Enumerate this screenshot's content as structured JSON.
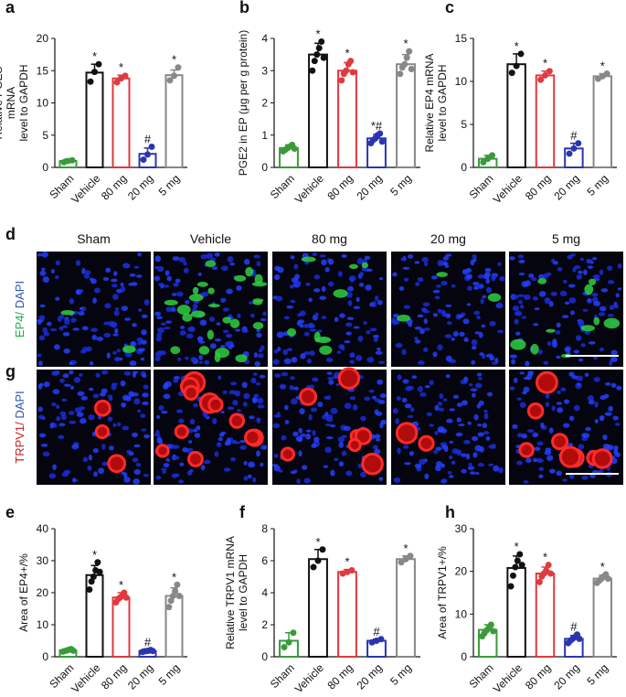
{
  "panel_labels": [
    "a",
    "b",
    "c",
    "d",
    "g",
    "e",
    "f",
    "h"
  ],
  "micrographs": {
    "columns": [
      "Sham",
      "Vehicle",
      "80 mg",
      "20 mg",
      "5 mg"
    ],
    "rows": [
      {
        "parts": [
          {
            "text": "EP4/",
            "color": "#22b04a"
          },
          {
            "text": " DAPI",
            "color": "#2a55b0"
          }
        ]
      },
      {
        "parts": [
          {
            "text": "TRPV1/",
            "color": "#c81e1e"
          },
          {
            "text": " DAPI",
            "color": "#2a55b0"
          }
        ]
      }
    ]
  },
  "chart_data": [
    {
      "type": "bar",
      "ylabel": [
        "Relative PGES",
        "mRNA",
        "level to GAPDH"
      ],
      "categories": [
        "Sham",
        "Vehicle",
        "80 mg",
        "20 mg",
        "5 mg"
      ],
      "colors": [
        "#3a9a3a",
        "#111111",
        "#e0393e",
        "#2b35b0",
        "#888888"
      ],
      "values": [
        1.0,
        14.7,
        13.8,
        2.1,
        14.3
      ],
      "errors": [
        0.3,
        1.3,
        0.5,
        0.9,
        0.8
      ],
      "points": [
        [
          0.8,
          1.0,
          1.1
        ],
        [
          13.3,
          14.8,
          16.0
        ],
        [
          13.2,
          13.8,
          14.2
        ],
        [
          1.2,
          2.0,
          3.2
        ],
        [
          13.5,
          14.2,
          15.5
        ]
      ],
      "annotations": [
        null,
        "*",
        "*",
        "#",
        "*"
      ],
      "ylim": [
        0,
        20
      ],
      "yticks": [
        0,
        5,
        10,
        15,
        20
      ]
    },
    {
      "type": "bar",
      "ylabel": [
        "PGE2 in EP (μg per g protein)"
      ],
      "categories": [
        "Sham",
        "Vehicle",
        "80 mg",
        "20 mg",
        "5 mg"
      ],
      "colors": [
        "#3a9a3a",
        "#111111",
        "#e0393e",
        "#2b35b0",
        "#888888"
      ],
      "values": [
        0.6,
        3.5,
        3.0,
        0.9,
        3.2
      ],
      "errors": [
        0.1,
        0.35,
        0.25,
        0.12,
        0.3
      ],
      "points": [
        [
          0.5,
          0.55,
          0.6,
          0.65,
          0.7,
          0.58
        ],
        [
          3.0,
          3.3,
          3.5,
          3.7,
          3.9,
          3.4
        ],
        [
          2.7,
          2.9,
          3.0,
          3.2,
          3.3,
          2.95
        ],
        [
          0.75,
          0.85,
          0.9,
          1.0,
          1.05,
          0.8
        ],
        [
          2.9,
          3.1,
          3.2,
          3.4,
          3.6,
          3.05
        ]
      ],
      "annotations": [
        null,
        "*",
        "*",
        "*#",
        "*"
      ],
      "ylim": [
        0,
        4
      ],
      "yticks": [
        0,
        1,
        2,
        3,
        4
      ]
    },
    {
      "type": "bar",
      "ylabel": [
        "Relative EP4 mRNA",
        "level to GAPDH"
      ],
      "categories": [
        "Sham",
        "Vehicle",
        "80 mg",
        "20 mg",
        "5 mg"
      ],
      "colors": [
        "#3a9a3a",
        "#111111",
        "#e0393e",
        "#2b35b0",
        "#888888"
      ],
      "values": [
        1.0,
        12.0,
        10.7,
        2.2,
        10.6
      ],
      "errors": [
        0.4,
        1.2,
        0.5,
        0.6,
        0.3
      ],
      "points": [
        [
          0.6,
          1.0,
          1.4
        ],
        [
          11.0,
          11.8,
          13.2
        ],
        [
          10.2,
          10.7,
          11.2
        ],
        [
          1.6,
          2.2,
          2.8
        ],
        [
          10.3,
          10.6,
          10.9
        ]
      ],
      "annotations": [
        null,
        "*",
        "*",
        "#",
        "*"
      ],
      "ylim": [
        0,
        15
      ],
      "yticks": [
        0,
        5,
        10,
        15
      ]
    },
    {
      "type": "bar",
      "ylabel": [
        "Area of EP4+/%"
      ],
      "categories": [
        "Sham",
        "Vehicle",
        "80 mg",
        "20 mg",
        "5 mg"
      ],
      "colors": [
        "#3a9a3a",
        "#111111",
        "#e0393e",
        "#2b35b0",
        "#888888"
      ],
      "values": [
        2.0,
        25.5,
        18.5,
        1.8,
        19.0
      ],
      "errors": [
        0.4,
        3.0,
        1.5,
        0.3,
        2.5
      ],
      "points": [
        [
          1.6,
          1.8,
          2.0,
          2.2,
          2.4,
          1.9
        ],
        [
          21.0,
          23.5,
          25.0,
          27.0,
          29.5,
          26.5
        ],
        [
          17.0,
          18.0,
          18.5,
          19.0,
          20.0,
          18.5
        ],
        [
          1.5,
          1.7,
          1.8,
          1.9,
          2.1,
          1.8
        ],
        [
          15.5,
          17.5,
          19.0,
          20.5,
          22.5,
          19.0
        ]
      ],
      "annotations": [
        null,
        "*",
        "*",
        "#",
        "*"
      ],
      "ylim": [
        0,
        40
      ],
      "yticks": [
        0,
        10,
        20,
        30,
        40
      ]
    },
    {
      "type": "bar",
      "ylabel": [
        "Relative TRPV1 mRNA",
        "level to GAPDH"
      ],
      "categories": [
        "Sham",
        "Vehicle",
        "80 mg",
        "20 mg",
        "5 mg"
      ],
      "colors": [
        "#3a9a3a",
        "#111111",
        "#e0393e",
        "#2b35b0",
        "#888888"
      ],
      "values": [
        1.0,
        6.1,
        5.3,
        1.0,
        6.1
      ],
      "errors": [
        0.5,
        0.6,
        0.15,
        0.1,
        0.2
      ],
      "points": [
        [
          0.6,
          0.9,
          1.5
        ],
        [
          5.6,
          6.0,
          6.7
        ],
        [
          5.2,
          5.3,
          5.4
        ],
        [
          0.9,
          1.0,
          1.1
        ],
        [
          5.9,
          6.1,
          6.3
        ]
      ],
      "annotations": [
        null,
        "*",
        "*",
        "#",
        "*"
      ],
      "ylim": [
        0,
        8
      ],
      "yticks": [
        0,
        2,
        4,
        6,
        8
      ]
    },
    {
      "type": "bar",
      "ylabel": [
        "Area of TRPV1+/%"
      ],
      "categories": [
        "Sham",
        "Vehicle",
        "80 mg",
        "20 mg",
        "5 mg"
      ],
      "colors": [
        "#3a9a3a",
        "#111111",
        "#e0393e",
        "#2b35b0",
        "#888888"
      ],
      "values": [
        6.3,
        20.8,
        19.5,
        4.2,
        18.3
      ],
      "errors": [
        1.2,
        2.8,
        1.5,
        0.8,
        0.8
      ],
      "points": [
        [
          4.8,
          5.5,
          6.2,
          6.8,
          7.5,
          6.0
        ],
        [
          16.5,
          19.0,
          21.0,
          22.5,
          24.0,
          21.5
        ],
        [
          17.5,
          18.8,
          19.5,
          20.2,
          21.5,
          19.5
        ],
        [
          3.2,
          3.8,
          4.2,
          4.6,
          5.2,
          4.2
        ],
        [
          17.3,
          17.8,
          18.3,
          18.8,
          19.3,
          18.3
        ]
      ],
      "annotations": [
        null,
        "*",
        "*",
        "#",
        "*"
      ],
      "ylim": [
        0,
        30
      ],
      "yticks": [
        0,
        10,
        20,
        30
      ]
    }
  ]
}
